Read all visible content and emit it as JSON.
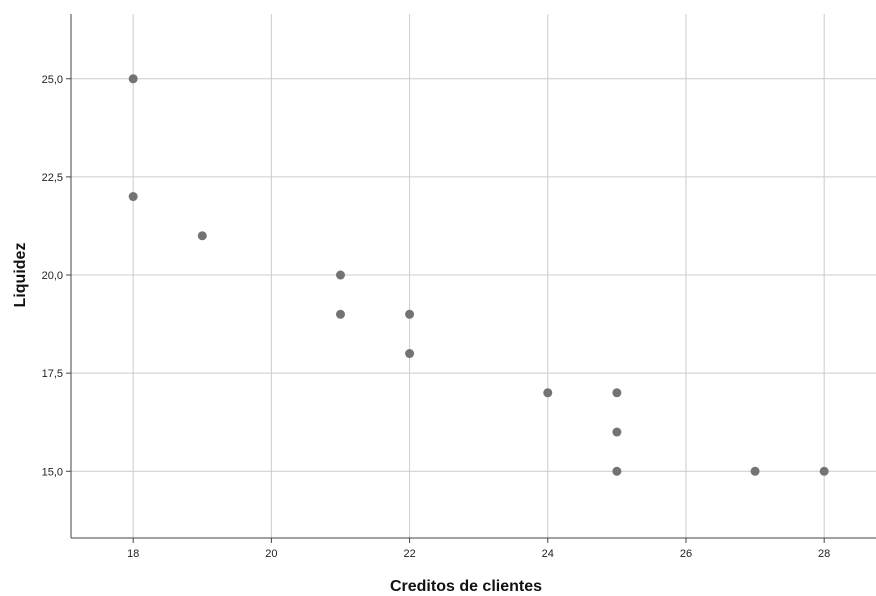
{
  "chart_data": {
    "type": "scatter",
    "title": "",
    "xlabel": "Creditos de clientes",
    "ylabel": "Liquidez",
    "xlim": [
      17.1,
      28.75
    ],
    "ylim": [
      13.3,
      26.65
    ],
    "xticks": [
      18,
      20,
      22,
      24,
      26,
      28
    ],
    "xtick_labels": [
      "18",
      "20",
      "22",
      "24",
      "26",
      "28"
    ],
    "yticks": [
      15.0,
      17.5,
      20.0,
      22.5,
      25.0
    ],
    "ytick_labels": [
      "15,0",
      "17,5",
      "20,0",
      "22,5",
      "25,0"
    ],
    "grid": true,
    "legend": "none",
    "marker_color": "#737373",
    "grid_color": "#cccccc",
    "axis_color": "#444444",
    "points": [
      {
        "x": 18,
        "y": 25
      },
      {
        "x": 18,
        "y": 22
      },
      {
        "x": 19,
        "y": 21
      },
      {
        "x": 21,
        "y": 20
      },
      {
        "x": 21,
        "y": 19
      },
      {
        "x": 22,
        "y": 19
      },
      {
        "x": 22,
        "y": 18
      },
      {
        "x": 24,
        "y": 17
      },
      {
        "x": 25,
        "y": 17
      },
      {
        "x": 25,
        "y": 16
      },
      {
        "x": 25,
        "y": 15
      },
      {
        "x": 27,
        "y": 15
      },
      {
        "x": 28,
        "y": 15
      }
    ]
  }
}
